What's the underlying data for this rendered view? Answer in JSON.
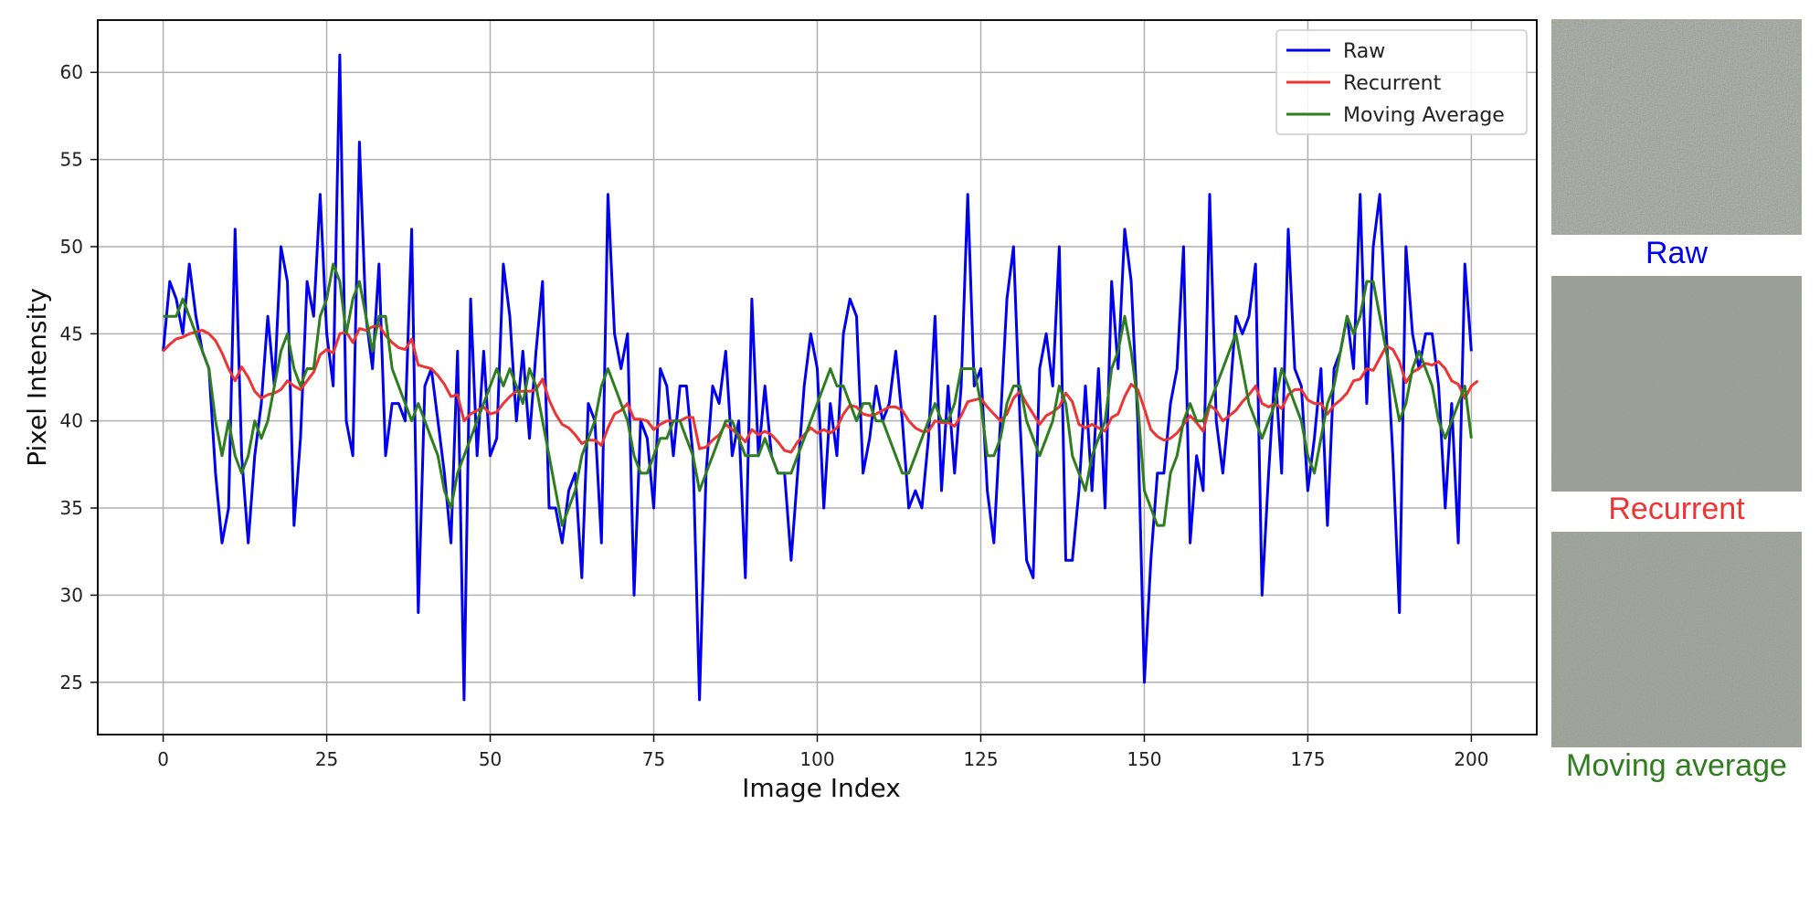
{
  "chart_data": {
    "type": "line",
    "xlabel": "Image Index",
    "ylabel": "Pixel Intensity",
    "xlim": [
      -10,
      210
    ],
    "ylim": [
      22,
      63
    ],
    "xticks": [
      0,
      25,
      50,
      75,
      100,
      125,
      150,
      175,
      200
    ],
    "yticks": [
      25,
      30,
      35,
      40,
      45,
      50,
      55,
      60
    ],
    "grid": true,
    "legend_position": "top-right",
    "series": [
      {
        "name": "Raw",
        "color": "#0000ee",
        "values": [
          44,
          48,
          47,
          45,
          49,
          46,
          44,
          43,
          37,
          33,
          35,
          51,
          38,
          33,
          38,
          41,
          46,
          42,
          50,
          48,
          34,
          39,
          48,
          46,
          53,
          45,
          42,
          61,
          40,
          38,
          56,
          46,
          43,
          49,
          38,
          41,
          41,
          40,
          51,
          29,
          42,
          43,
          40,
          37,
          33,
          44,
          24,
          47,
          38,
          44,
          38,
          39,
          49,
          46,
          40,
          44,
          39,
          44,
          48,
          35,
          35,
          33,
          36,
          37,
          31,
          41,
          40,
          33,
          53,
          45,
          43,
          45,
          30,
          40,
          39,
          35,
          43,
          42,
          38,
          42,
          42,
          38,
          24,
          37,
          42,
          41,
          44,
          38,
          40,
          31,
          47,
          38,
          42,
          38,
          37,
          37,
          32,
          37,
          42,
          45,
          43,
          35,
          41,
          38,
          45,
          47,
          46,
          37,
          39,
          42,
          40,
          41,
          44,
          40,
          35,
          36,
          35,
          39,
          46,
          36,
          42,
          37,
          42,
          53,
          42,
          43,
          36,
          33,
          40,
          47,
          50,
          40,
          32,
          31,
          43,
          45,
          42,
          50,
          32,
          32,
          36,
          42,
          36,
          43,
          35,
          48,
          43,
          51,
          48,
          40,
          25,
          32,
          37,
          37,
          41,
          43,
          50,
          33,
          38,
          36,
          53,
          40,
          37,
          41,
          46,
          45,
          46,
          49,
          30,
          37,
          43,
          37,
          51,
          43,
          42,
          36,
          39,
          43,
          34,
          43,
          44,
          46,
          43,
          53,
          41,
          50,
          53,
          45,
          38,
          29,
          50,
          45,
          43,
          45,
          45,
          42,
          35,
          41,
          33,
          49,
          44
        ]
      },
      {
        "name": "Recurrent",
        "color": "#ee3333",
        "values": [
          44,
          44.4,
          44.7,
          44.8,
          45.0,
          45.1,
          45.2,
          45.0,
          44.6,
          43.9,
          43.0,
          42.3,
          43.1,
          42.5,
          41.7,
          41.3,
          41.5,
          41.6,
          41.8,
          42.3,
          42.0,
          41.8,
          42.3,
          42.8,
          43.8,
          44.1,
          43.9,
          45.0,
          45.1,
          44.5,
          45.3,
          45.2,
          45.4,
          45.5,
          44.9,
          44.5,
          44.2,
          44.1,
          44.7,
          43.2,
          43.1,
          43.0,
          42.6,
          42.1,
          41.4,
          41.5,
          40.0,
          40.4,
          40.6,
          40.8,
          40.4,
          40.5,
          41.0,
          41.4,
          41.7,
          41.7,
          41.7,
          41.8,
          42.4,
          41.2,
          40.4,
          39.8,
          39.6,
          39.2,
          38.7,
          38.9,
          38.9,
          38.6,
          39.6,
          40.4,
          40.6,
          41.0,
          40.1,
          40.1,
          40.0,
          39.5,
          39.8,
          40.0,
          40.0,
          40.0,
          40.2,
          40.2,
          38.4,
          38.5,
          38.9,
          39.2,
          39.8,
          39.5,
          39.2,
          38.8,
          39.5,
          39.2,
          39.4,
          39.2,
          38.8,
          38.3,
          38.2,
          38.8,
          39.2,
          39.6,
          39.3,
          39.5,
          39.3,
          39.6,
          40.4,
          40.9,
          40.8,
          40.4,
          40.3,
          40.4,
          40.6,
          40.8,
          40.8,
          40.6,
          40.0,
          39.6,
          39.4,
          39.4,
          40.0,
          39.9,
          39.9,
          39.7,
          40.3,
          41.1,
          41.2,
          41.3,
          40.8,
          40.4,
          40.0,
          40.4,
          41.3,
          41.7,
          41.0,
          40.4,
          39.8,
          40.3,
          40.5,
          40.8,
          41.6,
          41.1,
          39.8,
          39.6,
          39.8,
          39.6,
          39.4,
          40.2,
          40.4,
          41.4,
          42.1,
          41.8,
          40.7,
          39.5,
          39.1,
          38.9,
          39.0,
          39.3,
          39.8,
          40.3,
          39.9,
          39.4,
          40.9,
          40.6,
          40.0,
          40.3,
          40.6,
          41.1,
          41.5,
          42.0,
          41.0,
          40.8,
          41.0,
          40.7,
          41.5,
          41.8,
          41.8,
          41.2,
          41.0,
          41.0,
          40.4,
          40.9,
          41.2,
          41.6,
          42.3,
          42.4,
          43.0,
          42.9,
          43.6,
          44.3,
          44.1,
          43.4,
          42.2,
          42.8,
          43.0,
          43.3,
          43.2,
          43.4,
          43.0,
          42.3,
          42.1,
          41.3,
          42.0,
          42.3
        ]
      },
      {
        "name": "Moving Average",
        "color": "#2e7d1e",
        "values": [
          46,
          46,
          46,
          47,
          46,
          45,
          44,
          43,
          40,
          38,
          40,
          38,
          37,
          38,
          40,
          39,
          40,
          42,
          44,
          45,
          43,
          42,
          43,
          43,
          46,
          47,
          49,
          48,
          45,
          47,
          48,
          46,
          44,
          46,
          46,
          43,
          42,
          41,
          40,
          41,
          40,
          39,
          38,
          36,
          35,
          37,
          38,
          39,
          40,
          41,
          42,
          43,
          42,
          43,
          42,
          41,
          43,
          42,
          40,
          38,
          36,
          34,
          35,
          36,
          38,
          39,
          40,
          42,
          43,
          42,
          41,
          40,
          38,
          37,
          37,
          38,
          39,
          39,
          40,
          40,
          39,
          38,
          36,
          37,
          38,
          39,
          40,
          40,
          39,
          38,
          38,
          38,
          39,
          38,
          37,
          37,
          37,
          38,
          39,
          40,
          41,
          42,
          43,
          42,
          42,
          41,
          40,
          41,
          41,
          40,
          40,
          39,
          38,
          37,
          37,
          38,
          39,
          40,
          41,
          40,
          40,
          41,
          43,
          43,
          43,
          41,
          38,
          38,
          39,
          41,
          42,
          42,
          40,
          39,
          38,
          39,
          40,
          42,
          41,
          38,
          37,
          36,
          38,
          39,
          40,
          43,
          44,
          46,
          44,
          41,
          36,
          35,
          34,
          34,
          37,
          38,
          40,
          41,
          40,
          40,
          41,
          42,
          43,
          44,
          45,
          43,
          41,
          40,
          39,
          40,
          41,
          43,
          42,
          41,
          40,
          38,
          37,
          39,
          41,
          42,
          44,
          46,
          45,
          46,
          48,
          48,
          46,
          44,
          42,
          40,
          41,
          43,
          44,
          43,
          42,
          40,
          39,
          40,
          41,
          42,
          39
        ]
      }
    ]
  },
  "images": [
    {
      "caption": "Raw",
      "color": "#0000ee"
    },
    {
      "caption": "Recurrent",
      "color": "#ee3333"
    },
    {
      "caption": "Moving average",
      "color": "#2e7d1e"
    }
  ]
}
